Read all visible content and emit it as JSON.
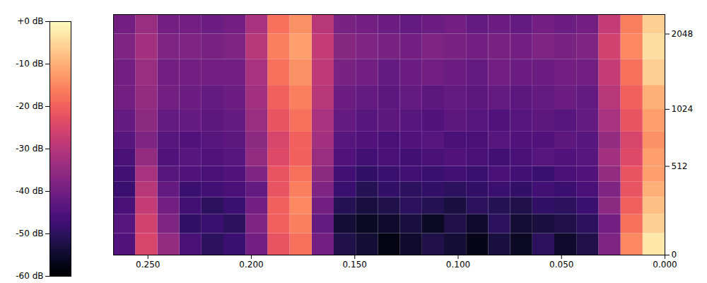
{
  "chart_data": {
    "type": "heatmap",
    "color": "magma",
    "x_edges": [
      0,
      0.01067,
      0.02133,
      0.032,
      0.04267,
      0.05333,
      0.064,
      0.07467,
      0.08533,
      0.096,
      0.10667,
      0.11733,
      0.128,
      0.13867,
      0.14933,
      0.16,
      0.17067,
      0.18133,
      0.192,
      0.20267,
      0.21333,
      0.224,
      0.23467,
      0.24533,
      0.256,
      0.26667
    ],
    "y_edges": [
      0,
      100,
      200,
      300,
      400,
      512,
      650,
      800,
      1024,
      1300,
      1650,
      2048,
      2400
    ],
    "values": [
      [
        -3,
        -6,
        -8,
        -10,
        -12,
        -12,
        -14,
        -12,
        -10,
        -6,
        -4,
        -6
      ],
      [
        -15,
        -18,
        -20,
        -22,
        -22,
        -24,
        -25,
        -22,
        -20,
        -18,
        -15,
        -16
      ],
      [
        -38,
        -40,
        -36,
        -38,
        -35,
        -33,
        -35,
        -32,
        -30,
        -28,
        -26,
        -28
      ],
      [
        -52,
        -50,
        -48,
        -46,
        -45,
        -44,
        -44,
        -42,
        -42,
        -40,
        -38,
        -40
      ],
      [
        -55,
        -52,
        -50,
        -48,
        -46,
        -45,
        -43,
        -44,
        -41,
        -40,
        -39,
        -41
      ],
      [
        -50,
        -53,
        -49,
        -47,
        -48,
        -44,
        -45,
        -43,
        -42,
        -41,
        -38,
        -40
      ],
      [
        -56,
        -54,
        -52,
        -49,
        -47,
        -46,
        -45,
        -44,
        -43,
        -41,
        -40,
        -42
      ],
      [
        -53,
        -50,
        -51,
        -48,
        -46,
        -47,
        -44,
        -45,
        -42,
        -40,
        -39,
        -41
      ],
      [
        -57,
        -55,
        -50,
        -49,
        -48,
        -46,
        -46,
        -44,
        -43,
        -42,
        -40,
        -42
      ],
      [
        -54,
        -52,
        -53,
        -50,
        -47,
        -45,
        -46,
        -43,
        -42,
        -41,
        -39,
        -40
      ],
      [
        -52,
        -56,
        -51,
        -49,
        -48,
        -46,
        -44,
        -45,
        -43,
        -40,
        -38,
        -41
      ],
      [
        -55,
        -53,
        -50,
        -50,
        -47,
        -47,
        -45,
        -44,
        -42,
        -41,
        -40,
        -42
      ],
      [
        -58,
        -55,
        -52,
        -49,
        -48,
        -46,
        -46,
        -43,
        -43,
        -42,
        -39,
        -41
      ],
      [
        -54,
        -56,
        -53,
        -51,
        -49,
        -47,
        -45,
        -44,
        -42,
        -40,
        -38,
        -40
      ],
      [
        -52,
        -54,
        -51,
        -48,
        -47,
        -45,
        -44,
        -42,
        -41,
        -39,
        -37,
        -39
      ],
      [
        -40,
        -42,
        -40,
        -38,
        -36,
        -34,
        -33,
        -32,
        -30,
        -29,
        -28,
        -30
      ],
      [
        -18,
        -16,
        -15,
        -16,
        -18,
        -20,
        -20,
        -18,
        -16,
        -14,
        -12,
        -14
      ],
      [
        -22,
        -20,
        -20,
        -22,
        -22,
        -24,
        -25,
        -22,
        -20,
        -18,
        -16,
        -18
      ],
      [
        -40,
        -38,
        -40,
        -42,
        -38,
        -35,
        -36,
        -34,
        -33,
        -32,
        -30,
        -32
      ],
      [
        -48,
        -50,
        -48,
        -46,
        -45,
        -44,
        -43,
        -42,
        -41,
        -40,
        -38,
        -40
      ],
      [
        -50,
        -48,
        -50,
        -47,
        -46,
        -45,
        -44,
        -43,
        -42,
        -40,
        -39,
        -41
      ],
      [
        -46,
        -49,
        -47,
        -48,
        -45,
        -44,
        -45,
        -42,
        -41,
        -40,
        -38,
        -40
      ],
      [
        -35,
        -38,
        -40,
        -42,
        -44,
        -45,
        -44,
        -42,
        -40,
        -40,
        -38,
        -40
      ],
      [
        -25,
        -26,
        -28,
        -30,
        -32,
        -35,
        -38,
        -36,
        -35,
        -34,
        -33,
        -34
      ],
      [
        -45,
        -44,
        -46,
        -48,
        -47,
        -46,
        -44,
        -42,
        -40,
        -40,
        -38,
        -40
      ]
    ],
    "xlim": [
      0,
      0.26667
    ],
    "xticks": [
      {
        "value": 0,
        "label": "0.000"
      },
      {
        "value": 0.05,
        "label": "0.050"
      },
      {
        "value": 0.1,
        "label": "0.100"
      },
      {
        "value": 0.15,
        "label": "0.150"
      },
      {
        "value": 0.2,
        "label": "0.200"
      },
      {
        "value": 0.25,
        "label": "0.250"
      }
    ],
    "ylim": [
      0,
      2400
    ],
    "yticks": [
      0,
      512,
      1024,
      2048
    ],
    "colorbar": {
      "range": [
        -60,
        0
      ],
      "ticks": [
        {
          "value": 0,
          "label": "+0 dB"
        },
        {
          "value": -10,
          "label": "-10 dB"
        },
        {
          "value": -20,
          "label": "-20 dB"
        },
        {
          "value": -30,
          "label": "-30 dB"
        },
        {
          "value": -40,
          "label": "-40 dB"
        },
        {
          "value": -50,
          "label": "-50 dB"
        },
        {
          "value": -60,
          "label": "-60 dB"
        }
      ]
    }
  }
}
